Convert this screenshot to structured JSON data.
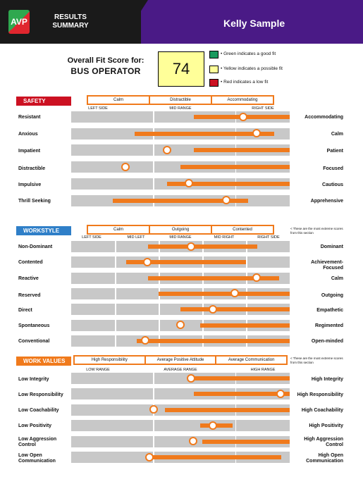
{
  "header": {
    "logo_text": "AVP",
    "title_line1": "RESULTS",
    "title_line2": "SUMMARY",
    "candidate_name": "Kelly Sample"
  },
  "fit": {
    "label": "Overall Fit Score for:",
    "job_title": "BUS OPERATOR",
    "score": "74",
    "score_color": "#ffff99",
    "legend": [
      {
        "color": "#1a9a5e",
        "text": "• Green indicates a good fit"
      },
      {
        "color": "#ffff99",
        "text": "• Yellow indicates a possible fit"
      },
      {
        "color": "#cc1122",
        "text": "• Red indicates a low fit"
      }
    ]
  },
  "colors": {
    "orange": "#f07a1c",
    "row_gray": "#c8c8c8",
    "safety_red": "#cc1122",
    "workstyle_blue": "#2f7fc8",
    "workvalues_orange": "#f07a1c"
  },
  "sections": [
    {
      "title": "SAFETY",
      "color": "#cc1122",
      "options": [
        "Calm",
        "Distractible",
        "Accommodating"
      ],
      "columns": [
        "LEFT SIDE",
        "MID RANGE",
        "RIGHT SIDE"
      ],
      "note": "",
      "rows": [
        {
          "left": "Resistant",
          "right": "Accommodating",
          "range": [
            0.56,
            1.0
          ],
          "marker": 0.79
        },
        {
          "left": "Anxious",
          "right": "Calm",
          "range": [
            0.29,
            0.93
          ],
          "marker": 0.85
        },
        {
          "left": "Impatient",
          "right": "Patient",
          "range": [
            0.56,
            1.0
          ],
          "marker": 0.44
        },
        {
          "left": "Distractible",
          "right": "Focused",
          "range": [
            0.5,
            1.0
          ],
          "marker": 0.25
        },
        {
          "left": "Impulsive",
          "right": "Cautious",
          "range": [
            0.44,
            1.0
          ],
          "marker": 0.54
        },
        {
          "left": "Thrill Seeking",
          "right": "Apprehensive",
          "range": [
            0.19,
            0.81
          ],
          "marker": 0.71
        }
      ]
    },
    {
      "title": "WORKSTYLE",
      "color": "#2f7fc8",
      "options": [
        "Calm",
        "Outgoing",
        "Contented"
      ],
      "columns": [
        "LEFT SIDE",
        "MID LEFT",
        "MID RANGE",
        "MID RIGHT",
        "RIGHT SIDE"
      ],
      "note": "< These are the most extreme scores from this section",
      "rows": [
        {
          "left": "Non-Dominant",
          "right": "Dominant",
          "range": [
            0.35,
            0.85
          ],
          "marker": 0.55
        },
        {
          "left": "Contented",
          "right": "Achievement-\nFocused",
          "range": [
            0.25,
            0.8
          ],
          "marker": 0.35
        },
        {
          "left": "Reactive",
          "right": "Calm",
          "range": [
            0.35,
            0.95
          ],
          "marker": 0.85
        },
        {
          "left": "Reserved",
          "right": "Outgoing",
          "range": [
            0.4,
            1.0
          ],
          "marker": 0.75
        },
        {
          "left": "Direct",
          "right": "Empathetic",
          "range": [
            0.5,
            1.0
          ],
          "marker": 0.65
        },
        {
          "left": "Spontaneous",
          "right": "Regimented",
          "range": [
            0.59,
            1.0
          ],
          "marker": 0.5
        },
        {
          "left": "Conventional",
          "right": "Open-minded",
          "range": [
            0.3,
            1.0
          ],
          "marker": 0.34
        }
      ]
    },
    {
      "title": "WORK VALUES",
      "color": "#f07a1c",
      "options": [
        "High Responsibility",
        "Average Positive Attitude",
        "Average Communication"
      ],
      "columns": [
        "LOW RANGE",
        "AVERAGE RANGE",
        "HIGH RANGE"
      ],
      "note": "< These are the most extreme scores from this section",
      "rows": [
        {
          "left": "Low Integrity",
          "right": "High Integrity",
          "range": [
            0.55,
            1.0
          ],
          "marker": 0.55
        },
        {
          "left": "Low Responsibility",
          "right": "High Responsibility",
          "range": [
            0.56,
            1.0
          ],
          "marker": 0.96
        },
        {
          "left": "Low Coachability",
          "right": "High Coachability",
          "range": [
            0.43,
            1.0
          ],
          "marker": 0.38
        },
        {
          "left": "Low Positivity",
          "right": "High Positivity",
          "range": [
            0.59,
            0.74
          ],
          "marker": 0.65
        },
        {
          "left": "Low Aggression\nControl",
          "right": "High Aggression\nControl",
          "range": [
            0.6,
            1.0
          ],
          "marker": 0.56
        },
        {
          "left": "Low Open\nCommunication",
          "right": "High Open\nCommunication",
          "range": [
            0.36,
            0.96
          ],
          "marker": 0.36
        }
      ]
    }
  ]
}
